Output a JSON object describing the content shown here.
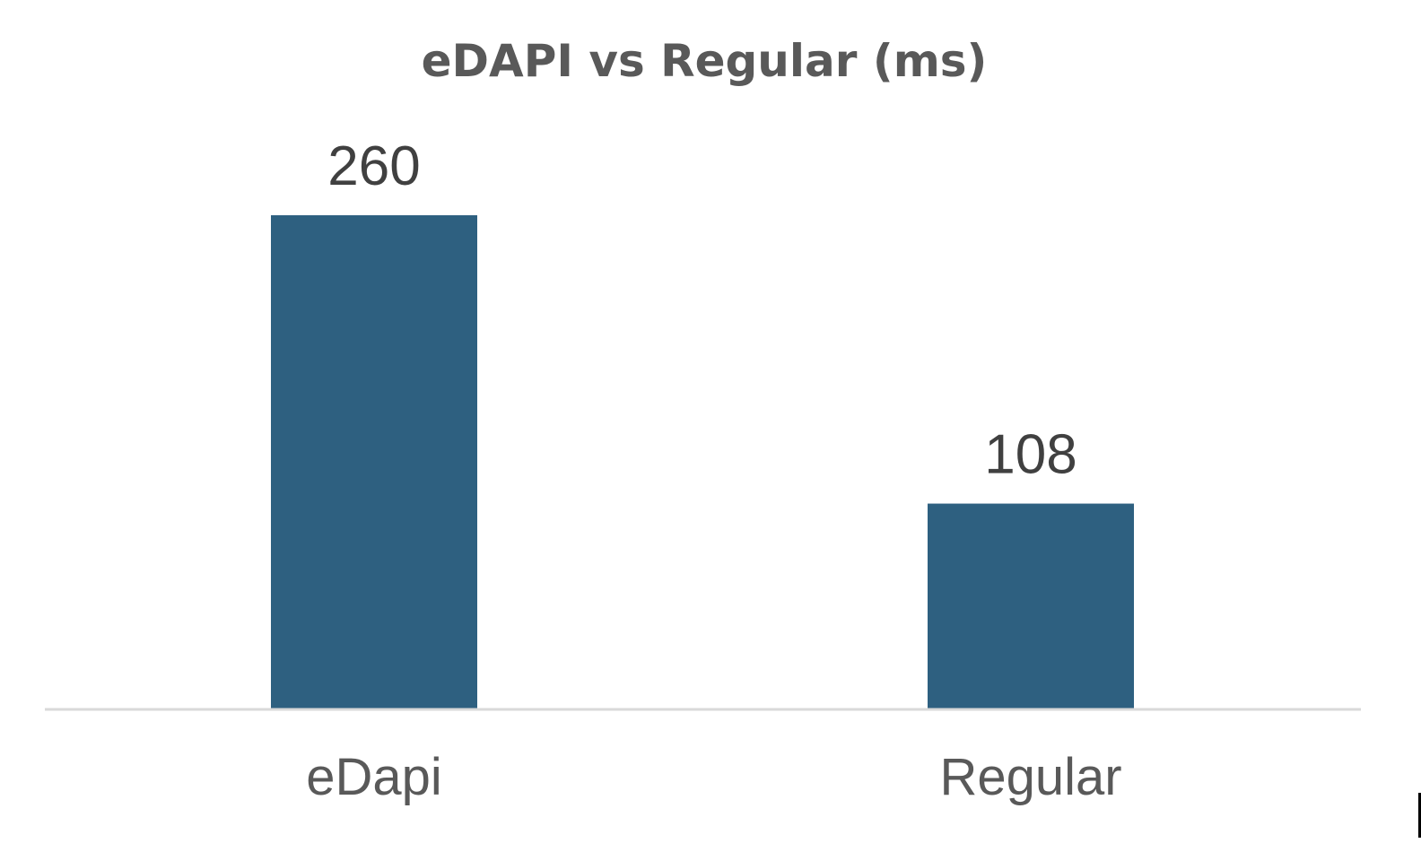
{
  "chart_data": {
    "type": "bar",
    "title": "eDAPI vs Regular (ms)",
    "categories": [
      "eDapi",
      "Regular"
    ],
    "values": [
      260,
      108
    ],
    "data_labels": [
      "260",
      "108"
    ],
    "xlabel": "",
    "ylabel": "",
    "ylim": [
      0,
      260
    ],
    "grid": false,
    "legend": "none",
    "bar_color": "#2E6080",
    "axis_color": "#D9D9D9"
  }
}
